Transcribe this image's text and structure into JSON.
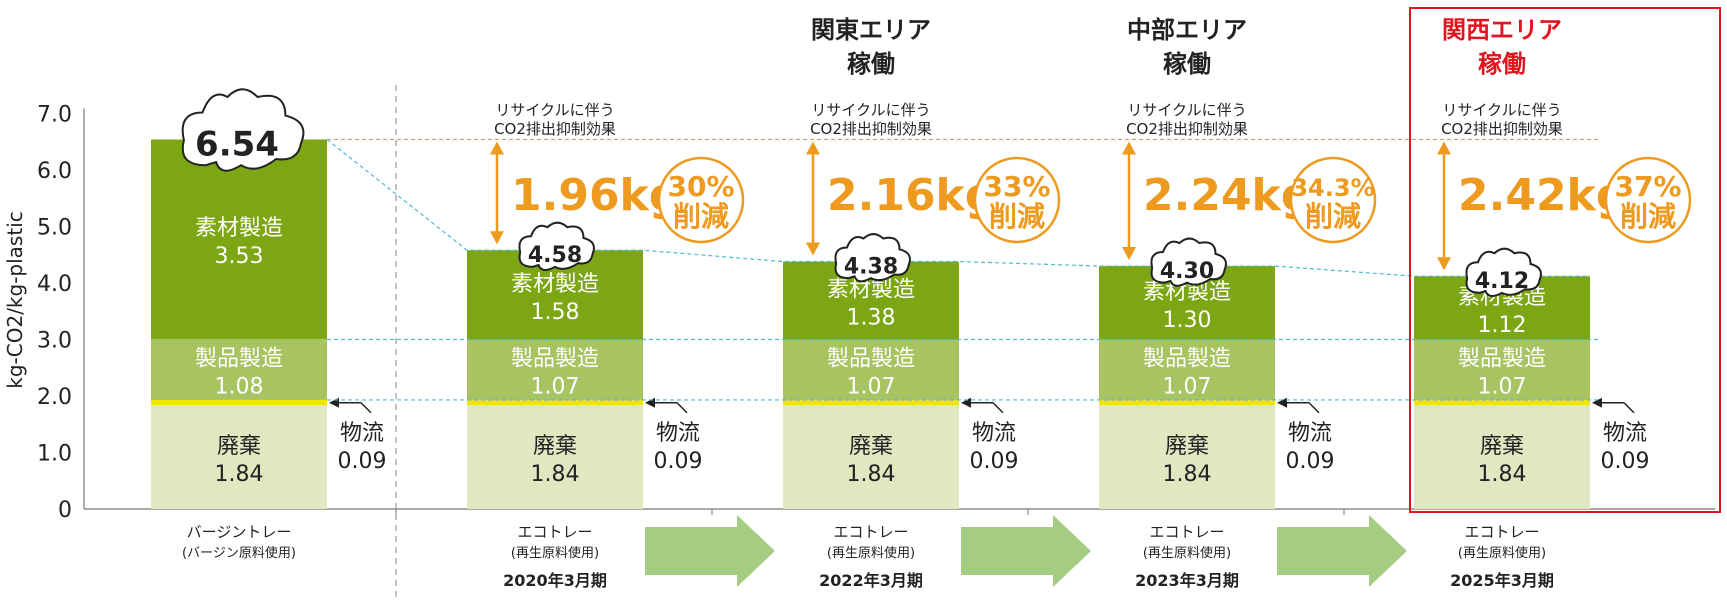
{
  "chart_data": {
    "type": "bar",
    "stacked": true,
    "ylabel": "kg-CO2/kg-plastic",
    "ylim": [
      0,
      7.0
    ],
    "yticks": [
      "7.0",
      "6.0",
      "5.0",
      "4.0",
      "3.0",
      "2.0",
      "1.0",
      "0"
    ],
    "categories": [
      {
        "name": "バージントレー",
        "sub": "(バージン原料使用)",
        "period": ""
      },
      {
        "name": "エコトレー",
        "sub": "(再生原料使用)",
        "period": "2020年3月期"
      },
      {
        "name": "エコトレー",
        "sub": "(再生原料使用)",
        "period": "2022年3月期"
      },
      {
        "name": "エコトレー",
        "sub": "(再生原料使用)",
        "period": "2023年3月期"
      },
      {
        "name": "エコトレー",
        "sub": "(再生原料使用)",
        "period": "2025年3月期"
      }
    ],
    "series": [
      {
        "name": "廃棄",
        "values": [
          1.84,
          1.84,
          1.84,
          1.84,
          1.84
        ],
        "labels": [
          "1.84",
          "1.84",
          "1.84",
          "1.84",
          "1.84"
        ],
        "color": "#e0e8c2"
      },
      {
        "name": "物流",
        "values": [
          0.09,
          0.09,
          0.09,
          0.09,
          0.09
        ],
        "labels": [
          "0.09",
          "0.09",
          "0.09",
          "0.09",
          "0.09"
        ],
        "color": "#f2e500"
      },
      {
        "name": "製品製造",
        "values": [
          1.08,
          1.07,
          1.07,
          1.07,
          1.07
        ],
        "labels": [
          "1.08",
          "1.07",
          "1.07",
          "1.07",
          "1.07"
        ],
        "color": "#a8c462"
      },
      {
        "name": "素材製造",
        "values": [
          3.53,
          1.58,
          1.38,
          1.3,
          1.12
        ],
        "labels": [
          "3.53",
          "1.58",
          "1.38",
          "1.30",
          "1.12"
        ],
        "color": "#7da614"
      }
    ],
    "totals": [
      "6.54",
      "4.58",
      "4.38",
      "4.30",
      "4.12"
    ],
    "total_values": [
      6.54,
      4.58,
      4.38,
      4.3,
      4.12
    ],
    "effect_label_line1": "リサイクルに伴う",
    "effect_label_line2": "CO2排出抑制効果",
    "reductions": [
      {
        "amount": "1.96kg",
        "percent": "30%",
        "word": "削減"
      },
      {
        "amount": "2.16kg",
        "percent": "33%",
        "word": "削減"
      },
      {
        "amount": "2.24kg",
        "percent": "34.3%",
        "word": "削減"
      },
      {
        "amount": "2.42kg",
        "percent": "37%",
        "word": "削減"
      }
    ],
    "area_headers": [
      {
        "line1": "関東エリア",
        "line2": "稼働",
        "color": "#222222"
      },
      {
        "line1": "中部エリア",
        "line2": "稼働",
        "color": "#222222"
      },
      {
        "line1": "関西エリア",
        "line2": "稼働",
        "color": "#e0141e"
      }
    ],
    "colors": {
      "accent_orange": "#ee9a1e",
      "highlight_red": "#e0141e",
      "arrow_green": "#a5cd82",
      "dashed_blue": "#4fb9d4",
      "dashed_tan": "#d4a27a"
    }
  }
}
